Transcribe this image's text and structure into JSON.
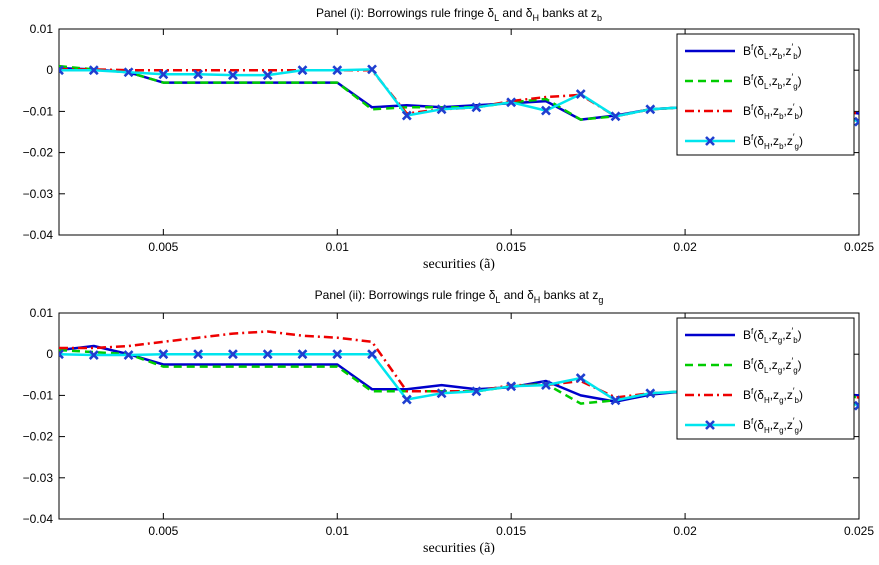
{
  "chart_data": [
    {
      "type": "line",
      "title": "Panel (i): Borrowings rule fringe δL and δH banks at zb",
      "title_parts": {
        "a": "Panel (i): Borrowings rule fringe δ",
        "b": "L",
        "c": " and δ",
        "d": "H",
        "e": " banks at z",
        "f": "b"
      },
      "xlabel": "securities (ã)",
      "ylabel": "",
      "xlim": [
        0.002,
        0.025
      ],
      "ylim": [
        -0.04,
        0.01
      ],
      "grid": false,
      "legend_position": "top-right",
      "xticks": [
        "0.005",
        "0.01",
        "0.015",
        "0.02",
        "0.025"
      ],
      "yticks": [
        "0.01",
        "0",
        "−0.01",
        "−0.02",
        "−0.03",
        "−0.04"
      ],
      "x": [
        0.002,
        0.003,
        0.004,
        0.005,
        0.006,
        0.007,
        0.008,
        0.009,
        0.01,
        0.011,
        0.012,
        0.013,
        0.014,
        0.015,
        0.016,
        0.017,
        0.018,
        0.019,
        0.02,
        0.021,
        0.022,
        0.023,
        0.024,
        0.025
      ],
      "series": [
        {
          "name": "B^f(δL,zb,z′b)",
          "legend_parts": [
            "B",
            "f",
            "(δ",
            "L",
            ",z",
            "b",
            ",z",
            "′",
            "b",
            ")"
          ],
          "color": "#0000cc",
          "style": "solid",
          "values": [
            0.0005,
            0.0002,
            -0.0005,
            -0.003,
            -0.003,
            -0.003,
            -0.003,
            -0.003,
            -0.003,
            -0.009,
            -0.0085,
            -0.009,
            -0.0085,
            -0.008,
            -0.0075,
            -0.012,
            -0.011,
            -0.0095,
            -0.009,
            -0.009,
            -0.009,
            -0.0095,
            -0.0095,
            -0.0105
          ]
        },
        {
          "name": "B^f(δL,zb,z′g)",
          "legend_parts": [
            "B",
            "f",
            "(δ",
            "L",
            ",z",
            "b",
            ",z",
            "′",
            "g",
            ")"
          ],
          "color": "#00cc00",
          "style": "dashed",
          "values": [
            0.001,
            0.0002,
            -0.0005,
            -0.003,
            -0.003,
            -0.003,
            -0.003,
            -0.003,
            -0.003,
            -0.0095,
            -0.009,
            -0.009,
            -0.009,
            -0.0078,
            -0.007,
            -0.012,
            -0.0112,
            -0.0095,
            -0.009,
            -0.009,
            -0.009,
            -0.0095,
            -0.0095,
            -0.0105
          ]
        },
        {
          "name": "B^f(δH,zb,z′b)",
          "legend_parts": [
            "B",
            "f",
            "(δ",
            "H",
            ",z",
            "b",
            ",z",
            "′",
            "b",
            ")"
          ],
          "color": "#ee0000",
          "style": "dashdot",
          "values": [
            0.0002,
            0.0002,
            0.0,
            0.0,
            0.0,
            0.0,
            0.0,
            0.0,
            0.0,
            0.0,
            -0.0105,
            -0.0095,
            -0.009,
            -0.0075,
            -0.0065,
            -0.006,
            -0.0112,
            -0.0095,
            -0.009,
            -0.009,
            -0.009,
            -0.0095,
            -0.0095,
            -0.0105
          ]
        },
        {
          "name": "B^f(δH,zb,z′g)",
          "legend_parts": [
            "B",
            "f",
            "(δ",
            "H",
            ",z",
            "b",
            ",z",
            "′",
            "g",
            ")"
          ],
          "color": "#00e5ee",
          "style": "solid-x",
          "values": [
            0.0,
            0.0,
            -0.0005,
            -0.001,
            -0.001,
            -0.0012,
            -0.0012,
            0.0,
            0.0,
            0.0002,
            -0.011,
            -0.0095,
            -0.009,
            -0.0078,
            -0.0098,
            -0.0058,
            -0.0112,
            -0.0095,
            -0.009,
            -0.009,
            -0.009,
            -0.0095,
            -0.0095,
            -0.0125
          ]
        }
      ]
    },
    {
      "type": "line",
      "title": "Panel (ii): Borrowings rule fringe δL and δH banks at zg",
      "title_parts": {
        "a": "Panel (ii): Borrowings rule fringe δ",
        "b": "L",
        "c": " and δ",
        "d": "H",
        "e": " banks at z",
        "f": "g"
      },
      "xlabel": "securities (ã)",
      "ylabel": "",
      "xlim": [
        0.002,
        0.025
      ],
      "ylim": [
        -0.04,
        0.01
      ],
      "grid": false,
      "legend_position": "top-right",
      "xticks": [
        "0.005",
        "0.01",
        "0.015",
        "0.02",
        "0.025"
      ],
      "yticks": [
        "0.01",
        "0",
        "−0.01",
        "−0.02",
        "−0.03",
        "−0.04"
      ],
      "x": [
        0.002,
        0.003,
        0.004,
        0.005,
        0.006,
        0.007,
        0.008,
        0.009,
        0.01,
        0.011,
        0.012,
        0.013,
        0.014,
        0.015,
        0.016,
        0.017,
        0.018,
        0.019,
        0.02,
        0.021,
        0.022,
        0.023,
        0.024,
        0.025
      ],
      "series": [
        {
          "name": "B^f(δL,zg,z′b)",
          "legend_parts": [
            "B",
            "f",
            "(δ",
            "L",
            ",z",
            "g",
            ",z",
            "′",
            "b",
            ")"
          ],
          "color": "#0000cc",
          "style": "solid",
          "values": [
            0.001,
            0.002,
            0.0,
            -0.0025,
            -0.0025,
            -0.0025,
            -0.0025,
            -0.0025,
            -0.0025,
            -0.0085,
            -0.0085,
            -0.0075,
            -0.0085,
            -0.008,
            -0.0065,
            -0.01,
            -0.0115,
            -0.0098,
            -0.009,
            -0.009,
            -0.009,
            -0.0095,
            -0.0095,
            -0.01
          ]
        },
        {
          "name": "B^f(δL,zg,z′g)",
          "legend_parts": [
            "B",
            "f",
            "(δ",
            "L",
            ",z",
            "g",
            ",z",
            "′",
            "g",
            ")"
          ],
          "color": "#00cc00",
          "style": "dashed",
          "values": [
            0.001,
            0.0005,
            0.0,
            -0.003,
            -0.003,
            -0.003,
            -0.003,
            -0.003,
            -0.003,
            -0.009,
            -0.009,
            -0.009,
            -0.009,
            -0.0078,
            -0.0072,
            -0.012,
            -0.0112,
            -0.0095,
            -0.009,
            -0.009,
            -0.009,
            -0.0095,
            -0.0095,
            -0.0105
          ]
        },
        {
          "name": "B^f(δH,zg,z′b)",
          "legend_parts": [
            "B",
            "f",
            "(δ",
            "H",
            ",z",
            "g",
            ",z",
            "′",
            "b",
            ")"
          ],
          "color": "#ee0000",
          "style": "dashdot",
          "values": [
            0.0015,
            0.0015,
            0.002,
            0.003,
            0.004,
            0.005,
            0.0055,
            0.0045,
            0.004,
            0.003,
            -0.009,
            -0.009,
            -0.009,
            -0.0075,
            -0.0075,
            -0.0065,
            -0.0105,
            -0.0095,
            -0.009,
            -0.009,
            -0.009,
            -0.0095,
            -0.0095,
            -0.0105
          ]
        },
        {
          "name": "B^f(δH,zg,z′g)",
          "legend_parts": [
            "B",
            "f",
            "(δ",
            "H",
            ",z",
            "g",
            ",z",
            "′",
            "g",
            ")"
          ],
          "color": "#00e5ee",
          "style": "solid-x",
          "values": [
            0.0,
            -0.0002,
            -0.0002,
            0.0,
            0.0,
            0.0,
            0.0,
            0.0,
            0.0,
            0.0,
            -0.011,
            -0.0095,
            -0.009,
            -0.0078,
            -0.0075,
            -0.0058,
            -0.0112,
            -0.0095,
            -0.009,
            -0.009,
            -0.009,
            -0.0095,
            -0.0095,
            -0.0125
          ]
        }
      ]
    }
  ]
}
